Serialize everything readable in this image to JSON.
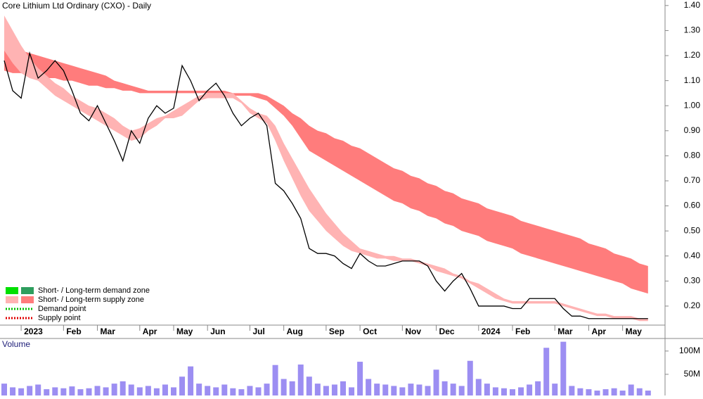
{
  "chart_data": {
    "type": "line",
    "title": "Core Lithium Ltd Ordinary (CXO) - Daily",
    "categories": [
      null,
      null,
      "2023",
      null,
      null,
      null,
      null,
      "Feb",
      null,
      null,
      null,
      "Mar",
      null,
      null,
      null,
      null,
      "Apr",
      null,
      null,
      null,
      "May",
      null,
      null,
      null,
      "Jun",
      null,
      null,
      null,
      null,
      "Jul",
      null,
      null,
      null,
      "Aug",
      null,
      null,
      null,
      null,
      "Sep",
      null,
      null,
      null,
      "Oct",
      null,
      null,
      null,
      null,
      "Nov",
      null,
      null,
      null,
      "Dec",
      null,
      null,
      null,
      null,
      "2024",
      null,
      null,
      null,
      "Feb",
      null,
      null,
      null,
      null,
      "Mar",
      null,
      null,
      null,
      "Apr",
      null,
      null,
      null,
      "May",
      null,
      null,
      null
    ],
    "values": [
      1.18,
      1.06,
      1.03,
      1.21,
      1.11,
      1.14,
      1.18,
      1.14,
      1.06,
      0.97,
      0.94,
      1.0,
      0.93,
      0.86,
      0.78,
      0.9,
      0.85,
      0.95,
      1.0,
      0.97,
      0.99,
      1.16,
      1.1,
      1.02,
      1.06,
      1.09,
      1.04,
      0.97,
      0.92,
      0.95,
      0.97,
      0.92,
      0.69,
      0.66,
      0.61,
      0.55,
      0.43,
      0.41,
      0.41,
      0.4,
      0.37,
      0.35,
      0.41,
      0.38,
      0.36,
      0.36,
      0.37,
      0.38,
      0.38,
      0.38,
      0.36,
      0.3,
      0.26,
      0.3,
      0.33,
      0.27,
      0.2,
      0.2,
      0.2,
      0.2,
      0.19,
      0.19,
      0.23,
      0.23,
      0.23,
      0.23,
      0.19,
      0.16,
      0.16,
      0.15,
      0.15,
      0.15,
      0.15,
      0.15,
      0.15,
      0.15,
      0.15
    ],
    "color": "#000000",
    "bands": [
      {
        "color": "#ff7c7c",
        "upper": [
          1.24,
          1.23,
          1.22,
          1.21,
          1.2,
          1.19,
          1.18,
          1.17,
          1.16,
          1.15,
          1.14,
          1.13,
          1.12,
          1.1,
          1.09,
          1.08,
          1.07,
          1.06,
          1.06,
          1.06,
          1.06,
          1.06,
          1.06,
          1.06,
          1.06,
          1.06,
          1.06,
          1.05,
          1.05,
          1.05,
          1.05,
          1.04,
          1.02,
          1.0,
          0.97,
          0.95,
          0.92,
          0.9,
          0.89,
          0.87,
          0.86,
          0.84,
          0.83,
          0.81,
          0.79,
          0.77,
          0.75,
          0.74,
          0.72,
          0.71,
          0.69,
          0.68,
          0.66,
          0.65,
          0.63,
          0.62,
          0.61,
          0.59,
          0.58,
          0.57,
          0.56,
          0.54,
          0.53,
          0.52,
          0.51,
          0.5,
          0.49,
          0.48,
          0.47,
          0.45,
          0.44,
          0.43,
          0.41,
          0.4,
          0.39,
          0.37,
          0.36
        ],
        "lower": [
          1.14,
          1.13,
          1.13,
          1.12,
          1.12,
          1.11,
          1.11,
          1.1,
          1.1,
          1.09,
          1.08,
          1.08,
          1.07,
          1.07,
          1.06,
          1.06,
          1.05,
          1.05,
          1.05,
          1.05,
          1.05,
          1.05,
          1.05,
          1.05,
          1.05,
          1.05,
          1.05,
          1.04,
          1.04,
          1.04,
          1.03,
          1.02,
          0.99,
          0.96,
          0.92,
          0.87,
          0.82,
          0.8,
          0.78,
          0.76,
          0.74,
          0.72,
          0.7,
          0.68,
          0.66,
          0.64,
          0.62,
          0.61,
          0.59,
          0.58,
          0.56,
          0.55,
          0.53,
          0.52,
          0.5,
          0.49,
          0.48,
          0.46,
          0.45,
          0.44,
          0.43,
          0.41,
          0.4,
          0.39,
          0.38,
          0.37,
          0.36,
          0.35,
          0.34,
          0.33,
          0.32,
          0.31,
          0.3,
          0.29,
          0.27,
          0.26,
          0.25
        ]
      },
      {
        "color": "#ffb3b3",
        "upper": [
          1.36,
          1.3,
          1.24,
          1.19,
          1.15,
          1.12,
          1.09,
          1.07,
          1.04,
          1.02,
          1.0,
          0.99,
          0.97,
          0.95,
          0.92,
          0.9,
          0.91,
          0.93,
          0.95,
          0.96,
          0.98,
          1.0,
          1.02,
          1.04,
          1.05,
          1.05,
          1.05,
          1.05,
          1.02,
          0.99,
          0.97,
          0.96,
          0.92,
          0.85,
          0.79,
          0.73,
          0.67,
          0.62,
          0.57,
          0.53,
          0.49,
          0.46,
          0.43,
          0.42,
          0.41,
          0.4,
          0.4,
          0.39,
          0.39,
          0.38,
          0.37,
          0.36,
          0.35,
          0.33,
          0.32,
          0.3,
          0.29,
          0.27,
          0.25,
          0.23,
          0.22,
          0.22,
          0.22,
          0.22,
          0.22,
          0.22,
          0.21,
          0.2,
          0.19,
          0.18,
          0.17,
          0.17,
          0.16,
          0.16,
          0.16,
          0.15,
          0.15
        ],
        "lower": [
          1.22,
          1.17,
          1.13,
          1.11,
          1.1,
          1.07,
          1.04,
          1.02,
          1.0,
          0.98,
          0.96,
          0.94,
          0.92,
          0.9,
          0.88,
          0.86,
          0.87,
          0.9,
          0.92,
          0.95,
          0.95,
          0.96,
          0.99,
          1.02,
          1.03,
          1.03,
          1.03,
          1.03,
          1.01,
          0.97,
          0.95,
          0.93,
          0.86,
          0.78,
          0.71,
          0.64,
          0.58,
          0.54,
          0.5,
          0.47,
          0.44,
          0.42,
          0.41,
          0.4,
          0.39,
          0.39,
          0.38,
          0.38,
          0.38,
          0.37,
          0.36,
          0.34,
          0.33,
          0.32,
          0.31,
          0.29,
          0.27,
          0.25,
          0.23,
          0.22,
          0.21,
          0.21,
          0.21,
          0.21,
          0.21,
          0.21,
          0.2,
          0.19,
          0.18,
          0.17,
          0.16,
          0.16,
          0.15,
          0.15,
          0.15,
          0.14,
          0.14
        ]
      }
    ],
    "ylim": [
      0.124,
      1.422
    ],
    "yticks": [
      {
        "value": 1.4,
        "label": "1.40"
      },
      {
        "value": 1.3,
        "label": "1.30"
      },
      {
        "value": 1.2,
        "label": "1.20"
      },
      {
        "value": 1.1,
        "label": "1.10"
      },
      {
        "value": 1.0,
        "label": "1.00"
      },
      {
        "value": 0.9,
        "label": "0.90"
      },
      {
        "value": 0.8,
        "label": "0.80"
      },
      {
        "value": 0.7,
        "label": "0.70"
      },
      {
        "value": 0.6,
        "label": "0.60"
      },
      {
        "value": 0.5,
        "label": "0.50"
      },
      {
        "value": 0.4,
        "label": "0.40"
      },
      {
        "value": 0.3,
        "label": "0.30"
      },
      {
        "value": 0.2,
        "label": "0.20"
      }
    ],
    "legend": [
      {
        "text": "Short- / Long-term demand zone",
        "colors": [
          "#00e000",
          "#2e9e5e"
        ],
        "style": "zone"
      },
      {
        "text": "Short- / Long-term supply zone",
        "colors": [
          "#ffb3b3",
          "#ff7c7c"
        ],
        "style": "zone"
      },
      {
        "text": "Demand point",
        "colors": [
          "#00c000"
        ],
        "style": "point"
      },
      {
        "text": "Supply point",
        "colors": [
          "#e00000"
        ],
        "style": "point"
      }
    ],
    "volume": {
      "label": "Volume",
      "color": "#7b68ee",
      "values": [
        30000000,
        22000000,
        20000000,
        25000000,
        28000000,
        18000000,
        22000000,
        20000000,
        24000000,
        18000000,
        20000000,
        25000000,
        22000000,
        30000000,
        35000000,
        28000000,
        22000000,
        25000000,
        20000000,
        28000000,
        22000000,
        45000000,
        67000000,
        30000000,
        25000000,
        22000000,
        28000000,
        20000000,
        18000000,
        25000000,
        22000000,
        30000000,
        70000000,
        40000000,
        35000000,
        71000000,
        45000000,
        30000000,
        25000000,
        28000000,
        35000000,
        22000000,
        77000000,
        40000000,
        30000000,
        28000000,
        25000000,
        22000000,
        30000000,
        28000000,
        25000000,
        60000000,
        35000000,
        30000000,
        25000000,
        79000000,
        40000000,
        30000000,
        22000000,
        20000000,
        18000000,
        22000000,
        28000000,
        35000000,
        107000000,
        30000000,
        120000000,
        25000000,
        20000000,
        18000000,
        15000000,
        18000000,
        20000000,
        15000000,
        28000000,
        20000000,
        15000000
      ],
      "ylim": [
        4500000,
        127000000
      ],
      "yticks": [
        {
          "value": 100000000,
          "label": "100M"
        },
        {
          "value": 50000000,
          "label": "50M"
        }
      ]
    }
  }
}
